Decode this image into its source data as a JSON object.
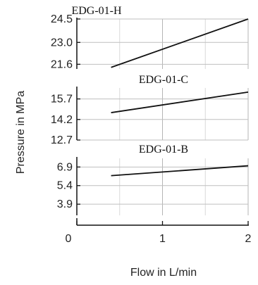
{
  "chart_data": {
    "type": "line",
    "ylabel": "Pressure in MPa",
    "xlabel": "Flow in L/min",
    "xlim": [
      0,
      2
    ],
    "x_ticks": [
      {
        "value": 0,
        "label": "0"
      },
      {
        "value": 1,
        "label": "1"
      },
      {
        "value": 2,
        "label": "2"
      }
    ],
    "grid": true,
    "panels": [
      {
        "title": "EDG-01-H",
        "ylim": [
          21.3,
          24.5
        ],
        "y_ticks": [
          {
            "value": 24.5,
            "label": "24.5"
          },
          {
            "value": 23.0,
            "label": "23.0"
          },
          {
            "value": 21.6,
            "label": "21.6"
          }
        ],
        "series": [
          {
            "x": [
              0.4,
              2.0
            ],
            "y": [
              21.4,
              24.5
            ]
          }
        ]
      },
      {
        "title": "EDG-01-C",
        "ylim": [
          12.7,
          16.5
        ],
        "y_ticks": [
          {
            "value": 15.7,
            "label": "15.7"
          },
          {
            "value": 14.2,
            "label": "14.2"
          },
          {
            "value": 12.7,
            "label": "12.7"
          }
        ],
        "series": [
          {
            "x": [
              0.4,
              2.0
            ],
            "y": [
              14.7,
              16.2
            ]
          }
        ]
      },
      {
        "title": "EDG-01-B",
        "ylim": [
          3.0,
          7.6
        ],
        "y_ticks": [
          {
            "value": 6.9,
            "label": "6.9"
          },
          {
            "value": 5.4,
            "label": "5.4"
          },
          {
            "value": 3.9,
            "label": "3.9"
          }
        ],
        "series": [
          {
            "x": [
              0.4,
              2.0
            ],
            "y": [
              6.2,
              7.0
            ]
          }
        ]
      }
    ]
  }
}
